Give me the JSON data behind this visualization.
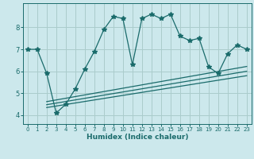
{
  "title": "",
  "xlabel": "Humidex (Indice chaleur)",
  "ylabel": "",
  "bg_color": "#cce8ec",
  "grid_color": "#aacccc",
  "line_color": "#1a6b6b",
  "main_line_x": [
    0,
    1,
    2,
    3,
    4,
    5,
    6,
    7,
    8,
    9,
    10,
    11,
    12,
    13,
    14,
    15,
    16,
    17,
    18,
    19,
    20,
    21,
    22,
    23
  ],
  "main_line_y": [
    7.0,
    7.0,
    5.9,
    4.1,
    4.5,
    5.2,
    6.1,
    6.9,
    7.9,
    8.5,
    8.4,
    6.3,
    8.4,
    8.6,
    8.4,
    8.6,
    7.6,
    7.4,
    7.5,
    6.2,
    5.9,
    6.8,
    7.2,
    7.0
  ],
  "band_lines": [
    {
      "x0": 2,
      "y0": 4.35,
      "x1": 23,
      "y1": 5.8
    },
    {
      "x0": 2,
      "y0": 4.48,
      "x1": 23,
      "y1": 6.0
    },
    {
      "x0": 2,
      "y0": 4.62,
      "x1": 23,
      "y1": 6.22
    }
  ],
  "ylim": [
    3.6,
    9.1
  ],
  "xlim": [
    -0.5,
    23.5
  ],
  "yticks": [
    4,
    5,
    6,
    7,
    8
  ],
  "xticks": [
    0,
    1,
    2,
    3,
    4,
    5,
    6,
    7,
    8,
    9,
    10,
    11,
    12,
    13,
    14,
    15,
    16,
    17,
    18,
    19,
    20,
    21,
    22,
    23
  ]
}
